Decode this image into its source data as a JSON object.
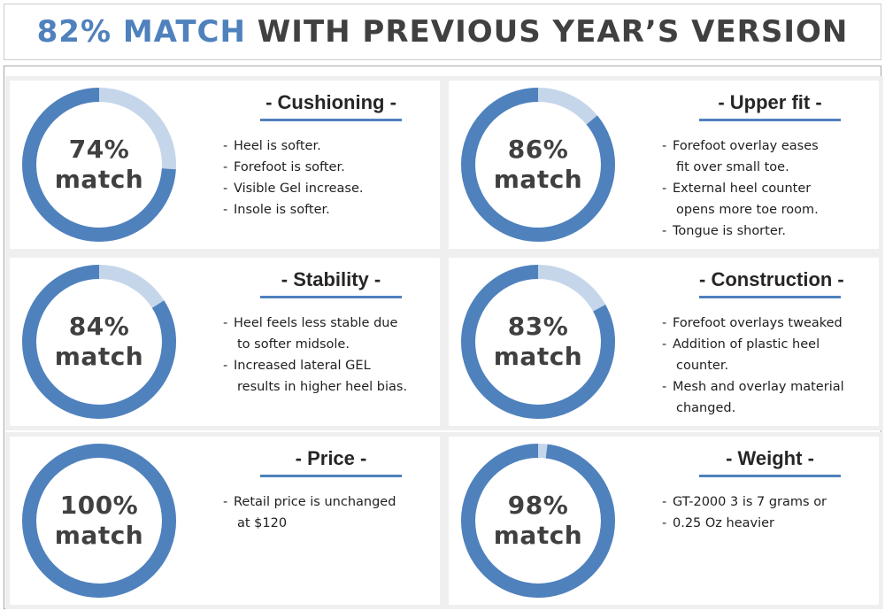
{
  "header": {
    "accent": "82% MATCH",
    "rest": "WITH PREVIOUS YEAR’S VERSION"
  },
  "colors": {
    "accent": "#4f81bd",
    "track": "#c5d6ea",
    "text_dark": "#404040"
  },
  "chart_data": [
    {
      "type": "pie",
      "variant": "donut",
      "title": "- Cushioning -",
      "value_percent": 74,
      "label_line1": "74%",
      "label_line2": "match",
      "notes": [
        "Heel is softer.",
        "Forefoot is softer.",
        "Visible Gel increase.",
        "Insole is softer."
      ]
    },
    {
      "type": "pie",
      "variant": "donut",
      "title": "- Upper fit -",
      "value_percent": 86,
      "label_line1": "86%",
      "label_line2": "match",
      "notes": [
        "Forefoot overlay eases",
        "  fit over small toe.",
        "External heel counter",
        "  opens more toe room.",
        "Tongue is shorter."
      ]
    },
    {
      "type": "pie",
      "variant": "donut",
      "title": "- Stability -",
      "value_percent": 84,
      "label_line1": "84%",
      "label_line2": "match",
      "notes": [
        "Heel feels less stable due",
        "to softer midsole.",
        "Increased lateral GEL",
        "results in higher heel bias."
      ]
    },
    {
      "type": "pie",
      "variant": "donut",
      "title": "- Construction -",
      "value_percent": 83,
      "label_line1": "83%",
      "label_line2": "match",
      "notes": [
        "Forefoot overlays tweaked",
        "Addition of plastic heel",
        "counter.",
        "Mesh and overlay material",
        "changed."
      ]
    },
    {
      "type": "pie",
      "variant": "donut",
      "title": "- Price -",
      "value_percent": 100,
      "label_line1": "100%",
      "label_line2": "match",
      "notes": [
        "Retail price is unchanged",
        "at $120"
      ]
    },
    {
      "type": "pie",
      "variant": "donut",
      "title": "- Weight -",
      "value_percent": 98,
      "label_line1": "98%",
      "label_line2": "match",
      "notes": [
        "GT-2000 3 is 7 grams or",
        "0.25 Oz heavier"
      ]
    }
  ]
}
